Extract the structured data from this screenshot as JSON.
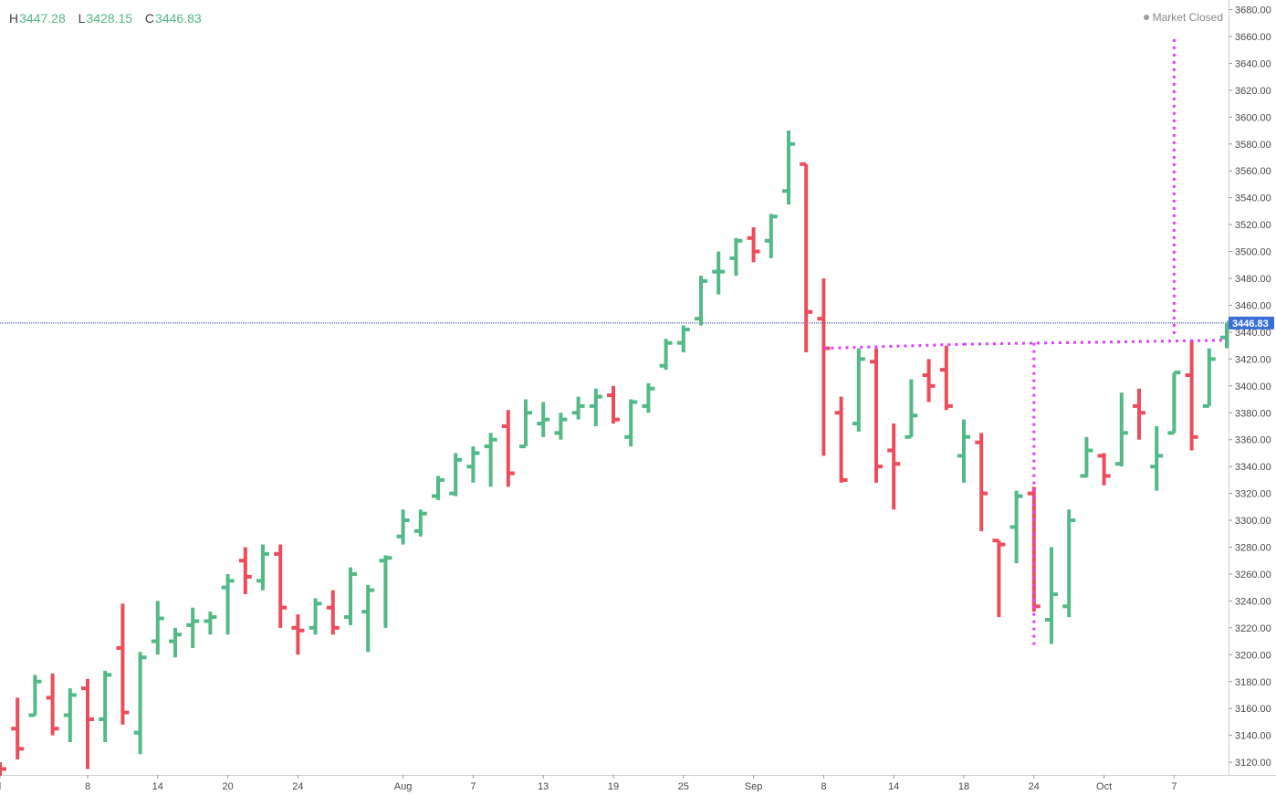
{
  "header": {
    "high_key": "H",
    "high_value": "3447.28",
    "low_key": "L",
    "low_value": "3428.15",
    "close_key": "C",
    "close_value": "3446.83"
  },
  "status": {
    "label": "Market Closed"
  },
  "colors": {
    "up": "#53b987",
    "down": "#eb4d5c",
    "annotation": "#e040fb",
    "last_line": "#1e3a8a",
    "last_badge": "#3a6fd8"
  },
  "chart_data": {
    "type": "ohlc",
    "ylim": [
      3110,
      3687
    ],
    "y_ticks": [
      3120,
      3140,
      3160,
      3180,
      3200,
      3220,
      3240,
      3260,
      3280,
      3300,
      3320,
      3340,
      3360,
      3380,
      3400,
      3420,
      3440,
      3460,
      3480,
      3500,
      3520,
      3540,
      3560,
      3580,
      3600,
      3620,
      3640,
      3660,
      3680
    ],
    "x_ticks": [
      {
        "label": "l",
        "bar": 0
      },
      {
        "label": "8",
        "bar": 5
      },
      {
        "label": "14",
        "bar": 9
      },
      {
        "label": "20",
        "bar": 13
      },
      {
        "label": "24",
        "bar": 17
      },
      {
        "label": "Aug",
        "bar": 23
      },
      {
        "label": "7",
        "bar": 27
      },
      {
        "label": "13",
        "bar": 31
      },
      {
        "label": "19",
        "bar": 35
      },
      {
        "label": "25",
        "bar": 39
      },
      {
        "label": "Sep",
        "bar": 43
      },
      {
        "label": "8",
        "bar": 47
      },
      {
        "label": "14",
        "bar": 51
      },
      {
        "label": "18",
        "bar": 55
      },
      {
        "label": "24",
        "bar": 59
      },
      {
        "label": "Oct",
        "bar": 63
      },
      {
        "label": "7",
        "bar": 67
      }
    ],
    "last_price": 3446.83,
    "last_price_label": "3446.83",
    "bars": [
      {
        "o": 3120,
        "h": 3120,
        "l": 3110,
        "c": 3115
      },
      {
        "o": 3145,
        "h": 3168,
        "l": 3122,
        "c": 3130
      },
      {
        "o": 3155,
        "h": 3185,
        "l": 3155,
        "c": 3180
      },
      {
        "o": 3168,
        "h": 3186,
        "l": 3140,
        "c": 3145
      },
      {
        "o": 3155,
        "h": 3175,
        "l": 3135,
        "c": 3170
      },
      {
        "o": 3175,
        "h": 3182,
        "l": 3115,
        "c": 3152
      },
      {
        "o": 3152,
        "h": 3188,
        "l": 3135,
        "c": 3185
      },
      {
        "o": 3205,
        "h": 3238,
        "l": 3148,
        "c": 3157
      },
      {
        "o": 3142,
        "h": 3202,
        "l": 3126,
        "c": 3198
      },
      {
        "o": 3210,
        "h": 3240,
        "l": 3200,
        "c": 3227
      },
      {
        "o": 3210,
        "h": 3220,
        "l": 3198,
        "c": 3215
      },
      {
        "o": 3222,
        "h": 3235,
        "l": 3205,
        "c": 3225
      },
      {
        "o": 3225,
        "h": 3232,
        "l": 3215,
        "c": 3228
      },
      {
        "o": 3250,
        "h": 3260,
        "l": 3215,
        "c": 3255
      },
      {
        "o": 3270,
        "h": 3280,
        "l": 3245,
        "c": 3258
      },
      {
        "o": 3255,
        "h": 3282,
        "l": 3248,
        "c": 3275
      },
      {
        "o": 3275,
        "h": 3282,
        "l": 3220,
        "c": 3235
      },
      {
        "o": 3220,
        "h": 3230,
        "l": 3200,
        "c": 3218
      },
      {
        "o": 3220,
        "h": 3242,
        "l": 3215,
        "c": 3238
      },
      {
        "o": 3235,
        "h": 3248,
        "l": 3215,
        "c": 3220
      },
      {
        "o": 3228,
        "h": 3265,
        "l": 3222,
        "c": 3260
      },
      {
        "o": 3232,
        "h": 3252,
        "l": 3202,
        "c": 3248
      },
      {
        "o": 3270,
        "h": 3274,
        "l": 3220,
        "c": 3272
      },
      {
        "o": 3288,
        "h": 3308,
        "l": 3282,
        "c": 3300
      },
      {
        "o": 3292,
        "h": 3308,
        "l": 3288,
        "c": 3305
      },
      {
        "o": 3318,
        "h": 3333,
        "l": 3315,
        "c": 3330
      },
      {
        "o": 3320,
        "h": 3350,
        "l": 3318,
        "c": 3345
      },
      {
        "o": 3340,
        "h": 3355,
        "l": 3328,
        "c": 3350
      },
      {
        "o": 3355,
        "h": 3365,
        "l": 3325,
        "c": 3360
      },
      {
        "o": 3370,
        "h": 3382,
        "l": 3325,
        "c": 3335
      },
      {
        "o": 3355,
        "h": 3390,
        "l": 3355,
        "c": 3380
      },
      {
        "o": 3372,
        "h": 3388,
        "l": 3362,
        "c": 3375
      },
      {
        "o": 3365,
        "h": 3380,
        "l": 3360,
        "c": 3375
      },
      {
        "o": 3380,
        "h": 3392,
        "l": 3375,
        "c": 3385
      },
      {
        "o": 3385,
        "h": 3398,
        "l": 3370,
        "c": 3392
      },
      {
        "o": 3393,
        "h": 3400,
        "l": 3372,
        "c": 3375
      },
      {
        "o": 3362,
        "h": 3390,
        "l": 3355,
        "c": 3388
      },
      {
        "o": 3385,
        "h": 3402,
        "l": 3380,
        "c": 3398
      },
      {
        "o": 3415,
        "h": 3435,
        "l": 3412,
        "c": 3432
      },
      {
        "o": 3432,
        "h": 3445,
        "l": 3425,
        "c": 3442
      },
      {
        "o": 3450,
        "h": 3482,
        "l": 3445,
        "c": 3478
      },
      {
        "o": 3485,
        "h": 3500,
        "l": 3468,
        "c": 3485
      },
      {
        "o": 3495,
        "h": 3510,
        "l": 3482,
        "c": 3508
      },
      {
        "o": 3510,
        "h": 3518,
        "l": 3492,
        "c": 3500
      },
      {
        "o": 3508,
        "h": 3528,
        "l": 3495,
        "c": 3526
      },
      {
        "o": 3545,
        "h": 3590,
        "l": 3535,
        "c": 3580
      },
      {
        "o": 3565,
        "h": 3565,
        "l": 3425,
        "c": 3455
      },
      {
        "o": 3450,
        "h": 3480,
        "l": 3348,
        "c": 3428
      },
      {
        "o": 3380,
        "h": 3392,
        "l": 3328,
        "c": 3330
      },
      {
        "o": 3372,
        "h": 3428,
        "l": 3366,
        "c": 3420
      },
      {
        "o": 3418,
        "h": 3428,
        "l": 3328,
        "c": 3340
      },
      {
        "o": 3352,
        "h": 3372,
        "l": 3308,
        "c": 3342
      },
      {
        "o": 3362,
        "h": 3405,
        "l": 3362,
        "c": 3378
      },
      {
        "o": 3408,
        "h": 3420,
        "l": 3388,
        "c": 3400
      },
      {
        "o": 3412,
        "h": 3430,
        "l": 3382,
        "c": 3385
      },
      {
        "o": 3348,
        "h": 3375,
        "l": 3328,
        "c": 3362
      },
      {
        "o": 3358,
        "h": 3365,
        "l": 3292,
        "c": 3320
      },
      {
        "o": 3285,
        "h": 3285,
        "l": 3228,
        "c": 3282
      },
      {
        "o": 3295,
        "h": 3322,
        "l": 3268,
        "c": 3318
      },
      {
        "o": 3320,
        "h": 3325,
        "l": 3232,
        "c": 3236
      },
      {
        "o": 3226,
        "h": 3280,
        "l": 3208,
        "c": 3245
      },
      {
        "o": 3236,
        "h": 3308,
        "l": 3228,
        "c": 3300
      },
      {
        "o": 3333,
        "h": 3362,
        "l": 3332,
        "c": 3352
      },
      {
        "o": 3348,
        "h": 3350,
        "l": 3326,
        "c": 3333
      },
      {
        "o": 3342,
        "h": 3395,
        "l": 3340,
        "c": 3365
      },
      {
        "o": 3385,
        "h": 3398,
        "l": 3360,
        "c": 3380
      },
      {
        "o": 3340,
        "h": 3370,
        "l": 3322,
        "c": 3348
      },
      {
        "o": 3365,
        "h": 3410,
        "l": 3365,
        "c": 3410
      },
      {
        "o": 3408,
        "h": 3434,
        "l": 3352,
        "c": 3362
      },
      {
        "o": 3385,
        "h": 3428,
        "l": 3385,
        "c": 3420
      },
      {
        "o": 3436,
        "h": 3447,
        "l": 3428,
        "c": 3447
      }
    ],
    "annotations": [
      {
        "type": "hline",
        "y1": 3428,
        "y2": 3431,
        "bar_start": 47,
        "bar_end": 55
      },
      {
        "type": "hline",
        "y1": 3431,
        "y2": 3434,
        "bar_start": 55,
        "bar_end": 70
      },
      {
        "type": "vline",
        "bar": 59,
        "y_top": 3432,
        "y_bottom": 3207
      },
      {
        "type": "vline",
        "bar": 67,
        "y_top": 3658,
        "y_bottom": 3436
      }
    ]
  }
}
